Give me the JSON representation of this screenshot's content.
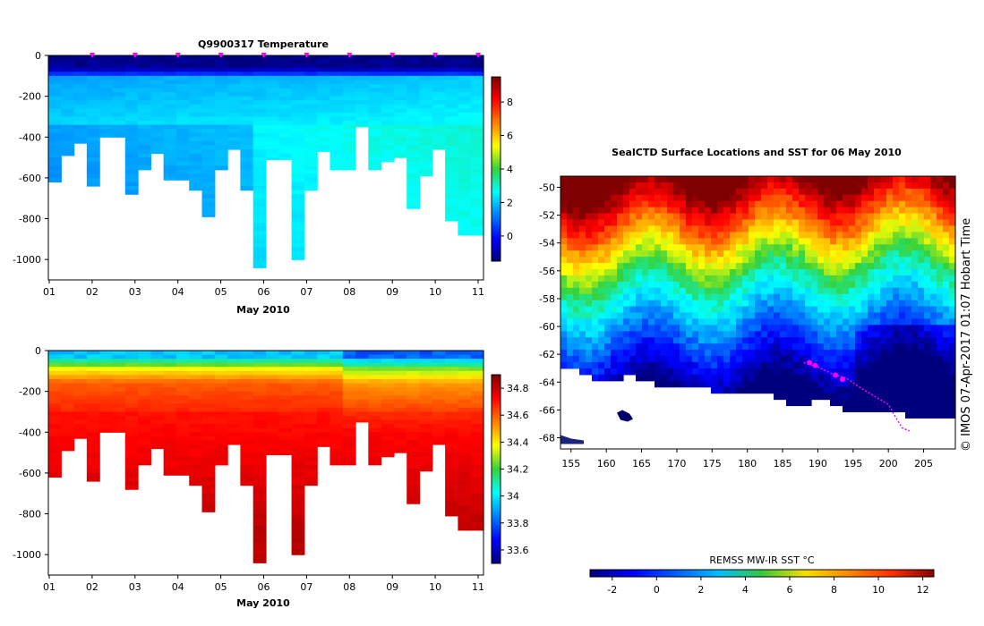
{
  "chart_data": [
    {
      "type": "heatmap",
      "title": "Q9900317  Temperature",
      "xlabel": "May 2010",
      "ylabel": "",
      "xticks": [
        "01",
        "02",
        "03",
        "04",
        "05",
        "06",
        "07",
        "08",
        "09",
        "10",
        "11"
      ],
      "yticks": [
        0,
        -200,
        -400,
        -600,
        -800,
        -1000
      ],
      "ylim": [
        -1100,
        0
      ],
      "colorbar": {
        "ticks": [
          8,
          6,
          4,
          2,
          0
        ],
        "range": [
          -1.5,
          9.5
        ]
      },
      "profile_max_depths": [
        -620,
        -490,
        -430,
        -640,
        -400,
        -400,
        -680,
        -560,
        -480,
        -610,
        -610,
        -660,
        -790,
        -560,
        -460,
        -660,
        -1040,
        -510,
        -510,
        -1000,
        -660,
        -470,
        -560,
        -560,
        -350,
        -560,
        -520,
        -500,
        -750,
        -590,
        -460,
        -810,
        -880,
        -880
      ],
      "cast_markers": [
        "02",
        "03",
        "04",
        "05",
        "06",
        "07",
        "08",
        "09",
        "10",
        "11"
      ]
    },
    {
      "type": "heatmap",
      "title": "",
      "xlabel": "May 2010",
      "ylabel": "",
      "xticks": [
        "01",
        "02",
        "03",
        "04",
        "05",
        "06",
        "07",
        "08",
        "09",
        "10",
        "11"
      ],
      "yticks": [
        0,
        -200,
        -400,
        -600,
        -800,
        -1000
      ],
      "ylim": [
        -1100,
        0
      ],
      "colorbar": {
        "ticks": [
          34.8,
          34.6,
          34.4,
          34.2,
          34,
          33.8,
          33.6
        ],
        "range": [
          33.5,
          34.9
        ]
      }
    },
    {
      "type": "heatmap",
      "title": "SealCTD Surface Locations and SST for 06 May 2010",
      "xticks": [
        155,
        160,
        165,
        170,
        175,
        180,
        185,
        190,
        195,
        200,
        205
      ],
      "yticks": [
        -50,
        -52,
        -54,
        -56,
        -58,
        -60,
        -62,
        -64,
        -66,
        -68
      ],
      "xlim": [
        153.5,
        209.5
      ],
      "ylim": [
        -68.8,
        -49.2
      ],
      "colorbar": {
        "label": "REMSS MW-IR SST °C",
        "ticks": [
          -2,
          0,
          2,
          4,
          6,
          8,
          10,
          12
        ],
        "range": [
          -3,
          12.5
        ]
      }
    }
  ],
  "credit": "© IMOS 07-Apr-2017 01:07 Hobart Time"
}
